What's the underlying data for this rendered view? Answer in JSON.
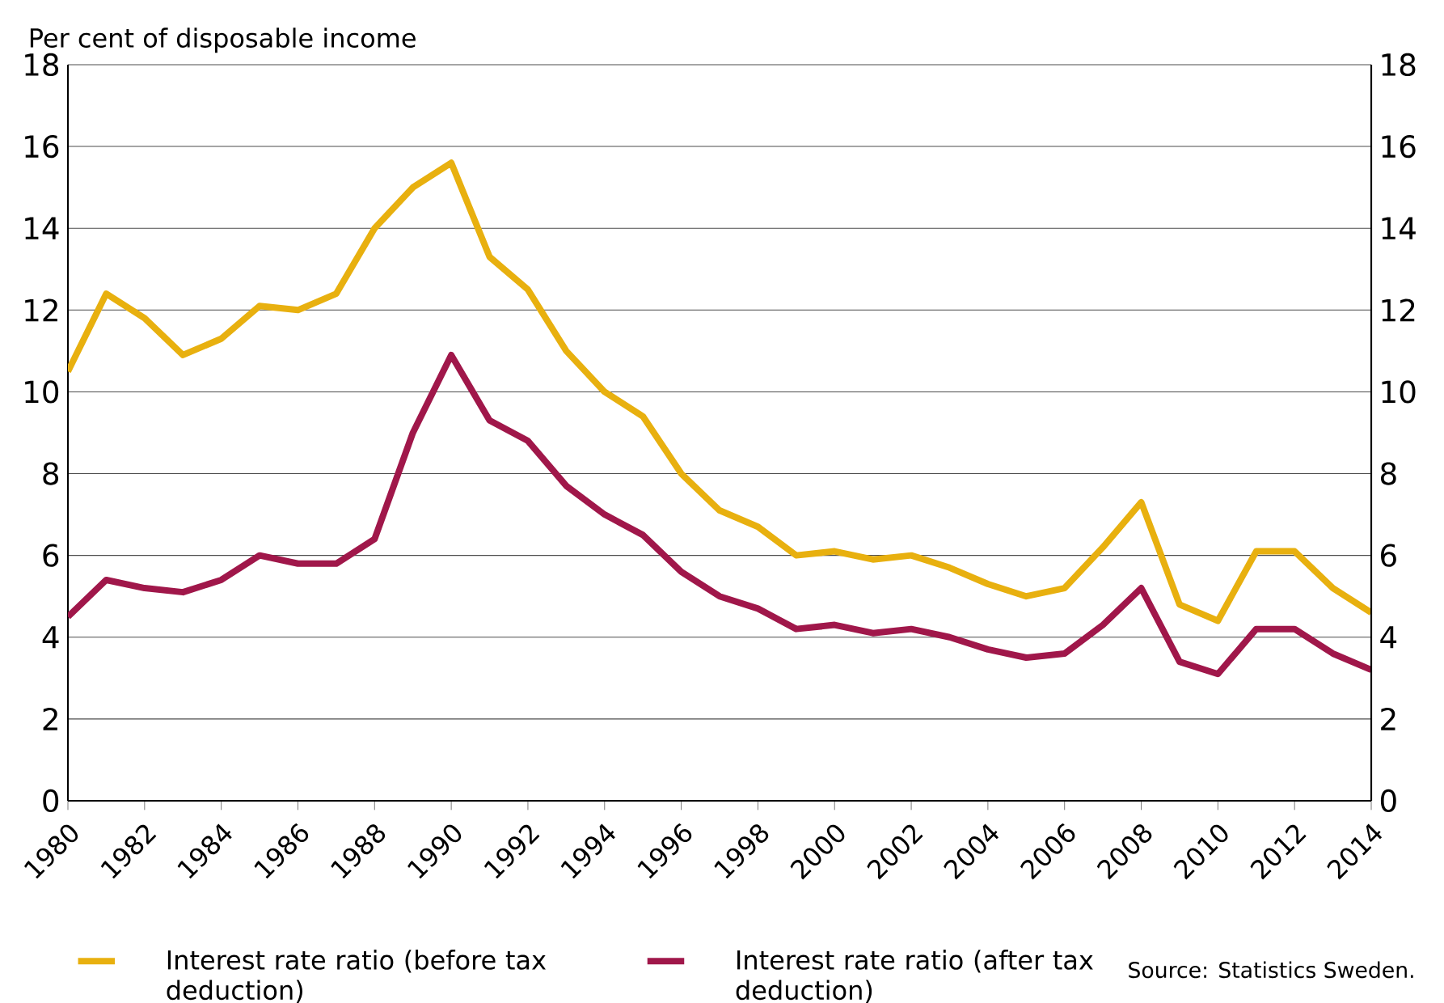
{
  "chart_data": {
    "type": "line",
    "ylabel": "Per cent of disposable income",
    "x": [
      1980,
      1981,
      1982,
      1983,
      1984,
      1985,
      1986,
      1987,
      1988,
      1989,
      1990,
      1991,
      1992,
      1993,
      1994,
      1995,
      1996,
      1997,
      1998,
      1999,
      2000,
      2001,
      2002,
      2003,
      2004,
      2005,
      2006,
      2007,
      2008,
      2009,
      2010,
      2011,
      2012,
      2013,
      2014
    ],
    "series": [
      {
        "name": "Interest rate ratio (before tax deduction)",
        "color": "#e8b00f",
        "values": [
          10.5,
          12.4,
          11.8,
          10.9,
          11.3,
          12.1,
          12.0,
          12.4,
          14.0,
          15.0,
          15.6,
          13.3,
          12.5,
          11.0,
          10.0,
          9.4,
          8.0,
          7.1,
          6.7,
          6.0,
          6.1,
          5.9,
          6.0,
          5.7,
          5.3,
          5.0,
          5.2,
          6.2,
          7.3,
          4.8,
          4.4,
          6.1,
          6.1,
          5.2,
          4.6
        ]
      },
      {
        "name": "Interest rate ratio (after tax deduction)",
        "color": "#a0174a",
        "values": [
          4.5,
          5.4,
          5.2,
          5.1,
          5.4,
          6.0,
          5.8,
          5.8,
          6.4,
          9.0,
          10.9,
          9.3,
          8.8,
          7.7,
          7.0,
          6.5,
          5.6,
          5.0,
          4.7,
          4.2,
          4.3,
          4.1,
          4.2,
          4.0,
          3.7,
          3.5,
          3.6,
          4.3,
          5.2,
          3.4,
          3.1,
          4.2,
          4.2,
          3.6,
          3.2
        ]
      }
    ],
    "xlim": [
      1980,
      2014
    ],
    "xticks": [
      1980,
      1982,
      1984,
      1986,
      1988,
      1990,
      1992,
      1994,
      1996,
      1998,
      2000,
      2002,
      2004,
      2006,
      2008,
      2010,
      2012,
      2014
    ],
    "ylim": [
      0,
      18
    ],
    "yticks": [
      0,
      2,
      4,
      6,
      8,
      10,
      12,
      14,
      16,
      18
    ],
    "y2lim": [
      0,
      18
    ],
    "y2ticks": [
      0,
      2,
      4,
      6,
      8,
      10,
      12,
      14,
      16,
      18
    ],
    "grid": "y",
    "legend": "bottom",
    "line_style": "solid",
    "annotations": [
      "Source: Statistics Sweden."
    ]
  }
}
